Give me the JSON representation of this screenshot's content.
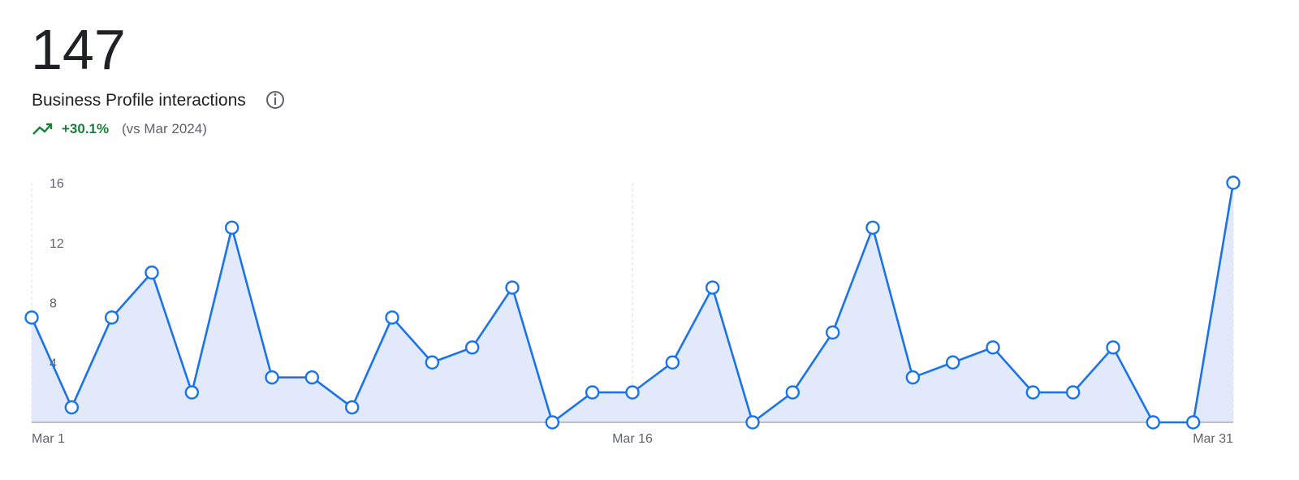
{
  "chart_data": {
    "type": "area",
    "total": 147,
    "title": "Business Profile interactions",
    "change": "+30.1%",
    "comparison": "(vs Mar 2024)",
    "categories": [
      "Mar 1",
      null,
      null,
      null,
      null,
      null,
      null,
      null,
      null,
      null,
      null,
      null,
      null,
      null,
      null,
      "Mar 16",
      null,
      null,
      null,
      null,
      null,
      null,
      null,
      null,
      null,
      null,
      null,
      null,
      null,
      null,
      "Mar 31"
    ],
    "series": [
      {
        "name": "Business Profile interactions",
        "color": "#1a73e8",
        "values": [
          7,
          1,
          7,
          10,
          2,
          13,
          3,
          3,
          1,
          7,
          4,
          5,
          9,
          0,
          2,
          2,
          4,
          9,
          0,
          2,
          6,
          13,
          3,
          4,
          5,
          2,
          2,
          5,
          0,
          0,
          16
        ]
      }
    ],
    "ylim": [
      0,
      16
    ],
    "yticks": [
      4,
      8,
      12,
      16
    ],
    "fill_color": "#e1e9fb"
  }
}
